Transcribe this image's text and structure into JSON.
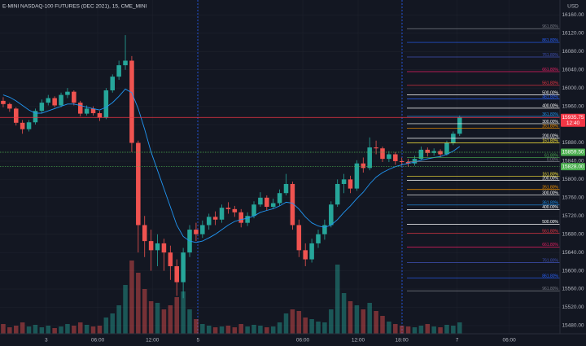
{
  "chart_data": {
    "type": "candlestick",
    "title": "E-MINI NASDAQ-100 FUTURES (DEC 2021), 15, CME_MINI",
    "currency": "USD",
    "ylim": [
      15462,
      16175
    ],
    "yticks": [
      {
        "value": 16160,
        "label": "16160.00"
      },
      {
        "value": 16120,
        "label": "16120.00"
      },
      {
        "value": 16080,
        "label": "16080.00"
      },
      {
        "value": 16040,
        "label": "16040.00"
      },
      {
        "value": 16000,
        "label": "16000.00"
      },
      {
        "value": 15960,
        "label": "15960.00"
      },
      {
        "value": 15920,
        "label": "15920.00"
      },
      {
        "value": 15880,
        "label": "15880.00"
      },
      {
        "value": 15840,
        "label": "15840.00"
      },
      {
        "value": 15800,
        "label": "15800.00"
      },
      {
        "value": 15760,
        "label": "15760.00"
      },
      {
        "value": 15720,
        "label": "15720.00"
      },
      {
        "value": 15680,
        "label": "15680.00"
      },
      {
        "value": 15640,
        "label": "15640.00"
      },
      {
        "value": 15600,
        "label": "15600.00"
      },
      {
        "value": 15560,
        "label": "15560.00"
      },
      {
        "value": 15520,
        "label": "15520.00"
      },
      {
        "value": 15480,
        "label": "15480.00"
      }
    ],
    "xlim": [
      -0.5,
      86.6
    ],
    "xticks": [
      {
        "value": 6.7,
        "label": "3"
      },
      {
        "value": 14.7,
        "label": "06:00"
      },
      {
        "value": 23.2,
        "label": "12:00"
      },
      {
        "value": 30.3,
        "label": "5"
      },
      {
        "value": 46.6,
        "label": "06:00"
      },
      {
        "value": 55.2,
        "label": "12:00"
      },
      {
        "value": 62,
        "label": "18:00"
      },
      {
        "value": 70.6,
        "label": "7"
      },
      {
        "value": 78.7,
        "label": "06:00"
      }
    ],
    "up_color": "#26a69a",
    "down_color": "#ef5350",
    "ma_color": "#2196f3",
    "candles": [
      [
        15972,
        15980,
        15958,
        15965
      ],
      [
        15965,
        15968,
        15948,
        15955
      ],
      [
        15955,
        15958,
        15918,
        15924
      ],
      [
        15924,
        15930,
        15900,
        15910
      ],
      [
        15910,
        15930,
        15905,
        15925
      ],
      [
        15925,
        15955,
        15920,
        15950
      ],
      [
        15950,
        15975,
        15945,
        15968
      ],
      [
        15968,
        15985,
        15962,
        15978
      ],
      [
        15978,
        15982,
        15958,
        15962
      ],
      [
        15962,
        15990,
        15958,
        15985
      ],
      [
        15985,
        16000,
        15978,
        15992
      ],
      [
        15992,
        15995,
        15962,
        15968
      ],
      [
        15968,
        15972,
        15938,
        15944
      ],
      [
        15944,
        15962,
        15940,
        15955
      ],
      [
        15955,
        15960,
        15940,
        15945
      ],
      [
        15945,
        15950,
        15928,
        15935
      ],
      [
        15935,
        16000,
        15932,
        15995
      ],
      [
        15995,
        16030,
        15990,
        16025
      ],
      [
        16025,
        16060,
        16018,
        16050
      ],
      [
        16050,
        16116,
        16040,
        16060
      ],
      [
        16060,
        16070,
        15860,
        15880
      ],
      [
        15880,
        15885,
        15640,
        15700
      ],
      [
        15700,
        15720,
        15630,
        15665
      ],
      [
        15665,
        15690,
        15600,
        15645
      ],
      [
        15645,
        15680,
        15610,
        15660
      ],
      [
        15660,
        15670,
        15600,
        15640
      ],
      [
        15640,
        15655,
        15580,
        15610
      ],
      [
        15610,
        15625,
        15545,
        15575
      ],
      [
        15575,
        15650,
        15540,
        15640
      ],
      [
        15640,
        15700,
        15630,
        15690
      ],
      [
        15690,
        15705,
        15665,
        15680
      ],
      [
        15680,
        15710,
        15672,
        15700
      ],
      [
        15700,
        15725,
        15690,
        15718
      ],
      [
        15718,
        15730,
        15700,
        15712
      ],
      [
        15712,
        15745,
        15705,
        15738
      ],
      [
        15738,
        15750,
        15725,
        15735
      ],
      [
        15735,
        15742,
        15718,
        15728
      ],
      [
        15728,
        15735,
        15695,
        15705
      ],
      [
        15705,
        15728,
        15698,
        15720
      ],
      [
        15720,
        15752,
        15715,
        15745
      ],
      [
        15745,
        15772,
        15740,
        15760
      ],
      [
        15760,
        15765,
        15732,
        15740
      ],
      [
        15740,
        15758,
        15735,
        15748
      ],
      [
        15748,
        15778,
        15742,
        15770
      ],
      [
        15770,
        15812,
        15765,
        15790
      ],
      [
        15790,
        15795,
        15690,
        15700
      ],
      [
        15700,
        15712,
        15630,
        15645
      ],
      [
        15645,
        15660,
        15610,
        15625
      ],
      [
        15625,
        15670,
        15618,
        15660
      ],
      [
        15660,
        15690,
        15650,
        15680
      ],
      [
        15680,
        15712,
        15668,
        15700
      ],
      [
        15700,
        15752,
        15695,
        15745
      ],
      [
        15745,
        15800,
        15740,
        15790
      ],
      [
        15790,
        15812,
        15770,
        15800
      ],
      [
        15800,
        15808,
        15770,
        15780
      ],
      [
        15780,
        15842,
        15775,
        15835
      ],
      [
        15835,
        15848,
        15815,
        15825
      ],
      [
        15825,
        15892,
        15820,
        15870
      ],
      [
        15870,
        15885,
        15855,
        15868
      ],
      [
        15868,
        15872,
        15838,
        15845
      ],
      [
        15845,
        15862,
        15838,
        15855
      ],
      [
        15855,
        15860,
        15832,
        15840
      ],
      [
        15840,
        15848,
        15830,
        15838
      ],
      [
        15838,
        15845,
        15828,
        15835
      ],
      [
        15835,
        15852,
        15830,
        15845
      ],
      [
        15845,
        15872,
        15842,
        15865
      ],
      [
        15865,
        15870,
        15850,
        15858
      ],
      [
        15858,
        15868,
        15852,
        15862
      ],
      [
        15862,
        15866,
        15848,
        15855
      ],
      [
        15855,
        15885,
        15852,
        15880
      ],
      [
        15880,
        15905,
        15875,
        15900
      ],
      [
        15900,
        15940,
        15895,
        15935.75
      ]
    ],
    "moving_average": [
      15985,
      15980,
      15972,
      15962,
      15952,
      15945,
      15945,
      15950,
      15955,
      15960,
      15965,
      15965,
      15962,
      15958,
      15955,
      15952,
      15958,
      15968,
      15982,
      15998,
      15990,
      15955,
      15910,
      15860,
      15820,
      15780,
      15740,
      15700,
      15675,
      15665,
      15662,
      15665,
      15672,
      15680,
      15690,
      15700,
      15708,
      15712,
      15715,
      15720,
      15728,
      15732,
      15736,
      15742,
      15750,
      15748,
      15735,
      15718,
      15705,
      15698,
      15695,
      15700,
      15712,
      15728,
      15742,
      15758,
      15772,
      15790,
      15805,
      15815,
      15822,
      15828,
      15832,
      15835,
      15838,
      15842,
      15845,
      15848,
      15850,
      15855,
      15862,
      15872
    ],
    "volume_max": 100,
    "volume": [
      12,
      8,
      10,
      14,
      9,
      11,
      8,
      10,
      7,
      9,
      12,
      10,
      14,
      11,
      9,
      10,
      20,
      25,
      35,
      60,
      90,
      75,
      55,
      40,
      38,
      30,
      35,
      45,
      52,
      30,
      18,
      12,
      10,
      8,
      9,
      10,
      8,
      12,
      9,
      11,
      10,
      8,
      9,
      14,
      25,
      30,
      28,
      20,
      18,
      15,
      14,
      30,
      85,
      50,
      40,
      35,
      30,
      38,
      28,
      22,
      15,
      12,
      10,
      9,
      8,
      10,
      12,
      9,
      8,
      11,
      10,
      14
    ],
    "fib_levels": [
      {
        "label": "961.80%",
        "price": 16130,
        "color": "#787b86"
      },
      {
        "label": "861.80%",
        "price": 16100,
        "color": "#2962ff"
      },
      {
        "label": "761.80%",
        "price": 16068,
        "color": "#3f51b5"
      },
      {
        "label": "661.80%",
        "price": 16036,
        "color": "#e91e63"
      },
      {
        "label": "561.80%",
        "price": 16006,
        "color": "#f23645"
      },
      {
        "label": "500.00%",
        "price": 15985,
        "color": "#ffffff"
      },
      {
        "label": "461.80%",
        "price": 15976,
        "color": "#2962ff"
      },
      {
        "label": "400.00%",
        "price": 15956,
        "color": "#ffffff"
      },
      {
        "label": "361.80%",
        "price": 15938,
        "color": "#2196f3"
      },
      {
        "label": "300.00%",
        "price": 15922,
        "color": "#ffffff"
      },
      {
        "label": "261.80%",
        "price": 15912,
        "color": "#ff9800"
      },
      {
        "label": "200.00%",
        "price": 15890,
        "color": "#ffffff"
      },
      {
        "label": "161.80%",
        "price": 15880,
        "color": "#ffeb3b"
      },
      {
        "label": "61.80%",
        "price": 15848,
        "color": "#4caf50"
      },
      {
        "label": "0.00%",
        "price": 15839,
        "color": "#787b86"
      },
      {
        "label": "161.80%",
        "price": 15807,
        "color": "#ffeb3b"
      },
      {
        "label": "200.00%",
        "price": 15798,
        "color": "#ffffff"
      },
      {
        "label": "261.80%",
        "price": 15778,
        "color": "#ff9800"
      },
      {
        "label": "300.00%",
        "price": 15766,
        "color": "#ffffff"
      },
      {
        "label": "361.80%",
        "price": 15744,
        "color": "#2196f3"
      },
      {
        "label": "400.00%",
        "price": 15734,
        "color": "#ffffff"
      },
      {
        "label": "500.00%",
        "price": 15702,
        "color": "#ffffff"
      },
      {
        "label": "561.80%",
        "price": 15682,
        "color": "#f23645"
      },
      {
        "label": "661.80%",
        "price": 15652,
        "color": "#e91e63"
      },
      {
        "label": "761.80%",
        "price": 15618,
        "color": "#3f51b5"
      },
      {
        "label": "861.80%",
        "price": 15584,
        "color": "#2962ff"
      },
      {
        "label": "961.80%",
        "price": 15556,
        "color": "#787b86"
      }
    ],
    "price_tags": [
      {
        "value": 15935.75,
        "label": "15935.75",
        "sub": "12:40",
        "color": "#f23645"
      },
      {
        "value": 15859.5,
        "label": "15859.50",
        "color": "#4caf50"
      },
      {
        "value": 15828,
        "label": "15828.00",
        "color": "#4caf50"
      }
    ]
  }
}
